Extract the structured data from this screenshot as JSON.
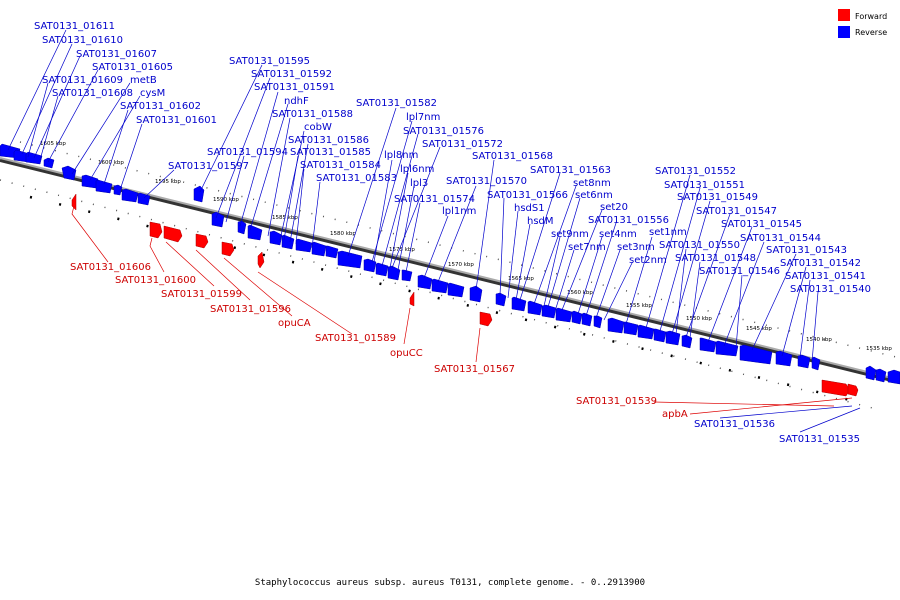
{
  "caption": "Staphylococcus aureus subsp. aureus T0131, complete genome. - 0..2913900",
  "legend": [
    {
      "label": "Forward",
      "color": "#ff0000"
    },
    {
      "label": "Reverse",
      "color": "#0000ff"
    }
  ],
  "colors": {
    "forward": "#ff0000",
    "reverse": "#0000ff",
    "backbone": "#666666"
  },
  "ticks": [
    "1605 kbp",
    "1600 kbp",
    "1595 kbp",
    "1590 kbp",
    "1585 kbp",
    "1580 kbp",
    "1575 kbp",
    "1570 kbp",
    "1565 kbp",
    "1560 kbp",
    "1555 kbp",
    "1550 kbp",
    "1545 kbp",
    "1540 kbp",
    "1535 kbp"
  ],
  "reverse_genes": [
    "SAT0131_01611",
    "SAT0131_01610",
    "SAT0131_01607",
    "SAT0131_01605",
    "SAT0131_01609",
    "metB",
    "SAT0131_01608",
    "cysM",
    "SAT0131_01602",
    "SAT0131_01601",
    "SAT0131_01597",
    "SAT0131_01595",
    "SAT0131_01592",
    "SAT0131_01591",
    "ndhF",
    "SAT0131_01588",
    "cobW",
    "SAT0131_01594",
    "SAT0131_01586",
    "SAT0131_01585",
    "SAT0131_01584",
    "SAT0131_01583",
    "SAT0131_01582",
    "lpl7nm",
    "SAT0131_01576",
    "lpl8nm",
    "SAT0131_01572",
    "lpl6nm",
    "lpl3",
    "SAT0131_01574",
    "lpl1nm",
    "SAT0131_01570",
    "SAT0131_01568",
    "SAT0131_01563",
    "set8nm",
    "SAT0131_01566",
    "set6nm",
    "hsdS1",
    "set20",
    "hsdM",
    "SAT0131_01556",
    "set9nm",
    "set4nm",
    "set7nm",
    "set3nm",
    "set2nm",
    "set1nm",
    "SAT0131_01552",
    "SAT0131_01551",
    "SAT0131_01549",
    "SAT0131_01547",
    "SAT0131_01545",
    "SAT0131_01550",
    "SAT0131_01544",
    "SAT0131_01548",
    "SAT0131_01543",
    "SAT0131_01546",
    "SAT0131_01542",
    "SAT0131_01541",
    "SAT0131_01540",
    "SAT0131_01536",
    "SAT0131_01535"
  ],
  "forward_genes": [
    "SAT0131_01606",
    "SAT0131_01600",
    "SAT0131_01599",
    "SAT0131_01596",
    "opuCA",
    "SAT0131_01589",
    "opuCC",
    "SAT0131_01567",
    "SAT0131_01539",
    "apbA"
  ]
}
